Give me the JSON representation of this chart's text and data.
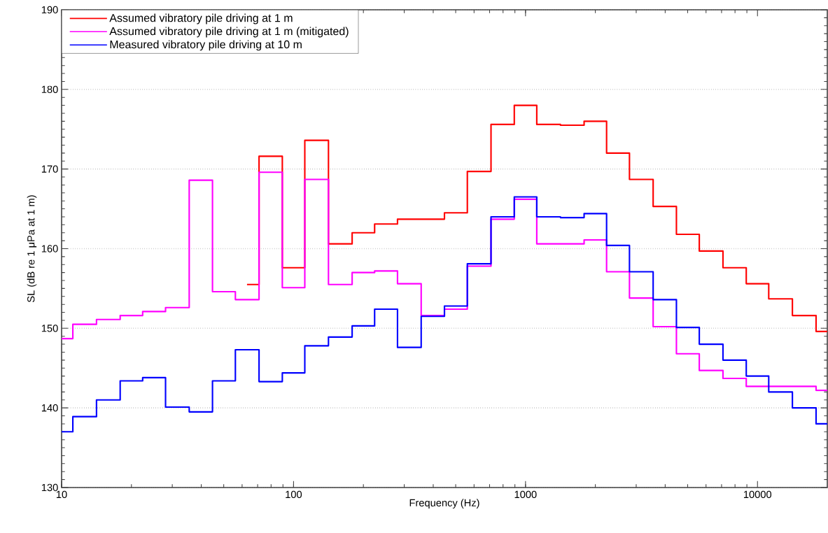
{
  "chart_data": {
    "type": "step",
    "xlabel": "Frequency (Hz)",
    "ylabel": "SL (dB re 1 μPa at 1 m)",
    "x": [
      10,
      12.5,
      16,
      20,
      25,
      31.5,
      40,
      50,
      63,
      80,
      100,
      125,
      160,
      200,
      250,
      315,
      400,
      500,
      630,
      800,
      1000,
      1250,
      1600,
      2000,
      2500,
      3150,
      4000,
      5000,
      6300,
      8000,
      10000,
      12500,
      16000,
      20000
    ],
    "series": [
      {
        "name": "Assumed vibratory pile driving at 1 m",
        "color": "#ff0000",
        "values": [
          null,
          null,
          null,
          null,
          null,
          null,
          null,
          null,
          155.5,
          171.6,
          157.6,
          173.6,
          160.6,
          162.0,
          163.1,
          163.7,
          163.7,
          164.5,
          169.7,
          175.6,
          178.0,
          175.6,
          175.5,
          176.0,
          172.0,
          168.7,
          165.3,
          161.8,
          159.7,
          157.6,
          155.6,
          153.7,
          151.6,
          149.6
        ]
      },
      {
        "name": "Assumed vibratory pile driving at 1 m (mitigated)",
        "color": "#ff00ff",
        "values": [
          148.7,
          150.5,
          151.1,
          151.6,
          152.1,
          152.6,
          168.6,
          154.6,
          153.6,
          169.6,
          155.1,
          168.7,
          155.5,
          157.0,
          157.2,
          155.6,
          151.6,
          152.4,
          157.8,
          163.7,
          166.2,
          160.6,
          160.6,
          161.1,
          157.1,
          153.8,
          150.2,
          146.8,
          144.7,
          143.7,
          142.7,
          142.7,
          142.7,
          142.2
        ]
      },
      {
        "name": "Measured vibratory pile driving at 10 m",
        "color": "#0000ff",
        "values": [
          137.0,
          138.9,
          141.0,
          143.4,
          143.8,
          140.1,
          139.5,
          143.4,
          147.3,
          143.3,
          144.4,
          147.8,
          148.9,
          150.3,
          152.4,
          147.6,
          151.5,
          152.8,
          158.1,
          164.0,
          166.5,
          164.0,
          163.9,
          164.4,
          160.4,
          157.1,
          153.6,
          150.1,
          148.0,
          146.0,
          144.0,
          142.0,
          140.0,
          138.0
        ]
      }
    ],
    "xlim": [
      10,
      20000
    ],
    "ylim": [
      130,
      190
    ],
    "xticks": [
      10,
      100,
      1000,
      10000
    ],
    "yticks": [
      130,
      140,
      150,
      160,
      170,
      180,
      190
    ],
    "log": "x",
    "grid": "y",
    "legend": "top left"
  }
}
